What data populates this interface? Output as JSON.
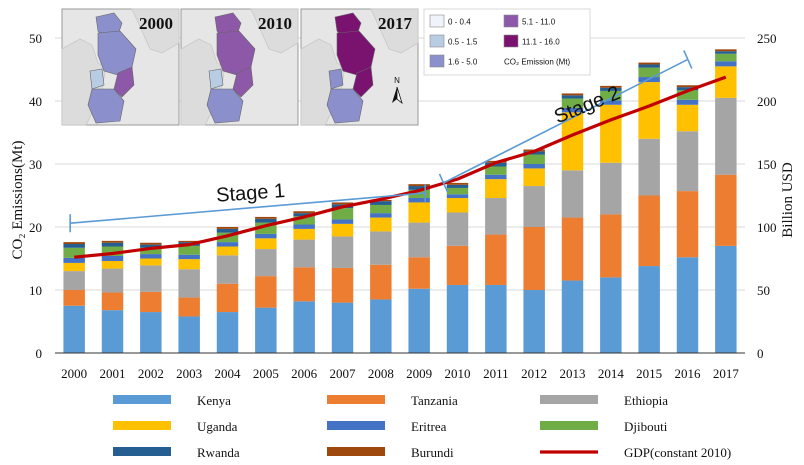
{
  "chart_data": {
    "type": "bar",
    "stacked": true,
    "categories": [
      "2000",
      "2001",
      "2002",
      "2003",
      "2004",
      "2005",
      "2006",
      "2007",
      "2008",
      "2009",
      "2010",
      "2011",
      "2012",
      "2013",
      "2014",
      "2015",
      "2016",
      "2017"
    ],
    "ylabel": "CO₂ Emissions(Mt)",
    "y2label": "Billion USD",
    "ylim": [
      0,
      50
    ],
    "y2lim": [
      0,
      250
    ],
    "yticks": [
      0,
      10,
      20,
      30,
      40,
      50
    ],
    "y2ticks": [
      0,
      50,
      100,
      150,
      200,
      250
    ],
    "legend_placement": "bottom",
    "series": [
      {
        "name": "Kenya",
        "color": "#5B9BD5",
        "values": [
          7.5,
          6.8,
          6.5,
          5.8,
          6.5,
          7.2,
          8.2,
          8.0,
          8.5,
          10.2,
          10.8,
          10.8,
          10.0,
          11.5,
          12.0,
          13.8,
          15.2,
          17.0
        ]
      },
      {
        "name": "Tanzania",
        "color": "#ED7D31",
        "values": [
          2.5,
          2.8,
          3.2,
          3.0,
          4.5,
          5.0,
          5.4,
          5.5,
          5.5,
          5.0,
          6.2,
          8.0,
          10.0,
          10.0,
          10.0,
          11.2,
          10.5,
          11.3
        ]
      },
      {
        "name": "Ethiopia",
        "color": "#A5A5A5",
        "values": [
          3.0,
          3.8,
          4.2,
          4.5,
          4.5,
          4.3,
          4.4,
          5.0,
          5.3,
          5.5,
          5.3,
          5.8,
          6.5,
          7.5,
          8.2,
          9.0,
          9.5,
          12.2
        ]
      },
      {
        "name": "Uganda",
        "color": "#FFC000",
        "values": [
          1.3,
          1.2,
          1.1,
          1.6,
          1.4,
          1.7,
          1.7,
          2.0,
          2.2,
          3.2,
          2.3,
          3.0,
          2.8,
          9.2,
          9.2,
          9.0,
          4.2,
          5.0
        ]
      },
      {
        "name": "Eritrea",
        "color": "#4472C4",
        "values": [
          0.8,
          0.8,
          0.7,
          0.7,
          0.7,
          0.7,
          0.7,
          0.7,
          0.7,
          0.7,
          0.6,
          0.7,
          0.7,
          0.7,
          0.7,
          0.8,
          0.8,
          0.8
        ]
      },
      {
        "name": "Djibouti",
        "color": "#70AD47",
        "values": [
          1.6,
          1.5,
          1.0,
          1.4,
          1.5,
          1.8,
          1.3,
          1.8,
          1.3,
          1.3,
          1.0,
          1.3,
          1.5,
          1.5,
          1.5,
          1.5,
          1.5,
          1.2
        ]
      },
      {
        "name": "Rwanda",
        "color": "#255E91",
        "values": [
          0.6,
          0.6,
          0.5,
          0.6,
          0.6,
          0.6,
          0.5,
          0.6,
          0.6,
          0.6,
          0.5,
          0.6,
          0.5,
          0.5,
          0.5,
          0.5,
          0.5,
          0.4
        ]
      },
      {
        "name": "Burundi",
        "color": "#9E480E",
        "values": [
          0.3,
          0.3,
          0.3,
          0.2,
          0.3,
          0.3,
          0.3,
          0.3,
          0.2,
          0.3,
          0.3,
          0.3,
          0.3,
          0.3,
          0.3,
          0.3,
          0.3,
          0.3
        ]
      }
    ],
    "line_series": {
      "name": "GDP(constant 2010)",
      "color": "#C00000",
      "axis": "right",
      "values": [
        76,
        79,
        83,
        86,
        93,
        101,
        108,
        116,
        122,
        129,
        138,
        151,
        160,
        173,
        185,
        196,
        208,
        219
      ]
    },
    "annotations": [
      {
        "text": "Stage 1",
        "from": "2000",
        "to": "2009"
      },
      {
        "text": "Stage 2",
        "from": "2010",
        "to": "2017"
      }
    ],
    "inset_maps": {
      "years": [
        "2000",
        "2010",
        "2017"
      ],
      "north_label": "N",
      "legend_title": "CO₂ Emission (Mt)",
      "legend_items": [
        {
          "label": "0 - 0.4",
          "color": "#EEF4FA"
        },
        {
          "label": "0.5 - 1.5",
          "color": "#B8CCE4"
        },
        {
          "label": "1.6 - 5.0",
          "color": "#8B8FCC"
        },
        {
          "label": "5.1 - 11.0",
          "color": "#8E58A8"
        },
        {
          "label": "11.1 - 16.0",
          "color": "#7A1270"
        }
      ]
    }
  }
}
